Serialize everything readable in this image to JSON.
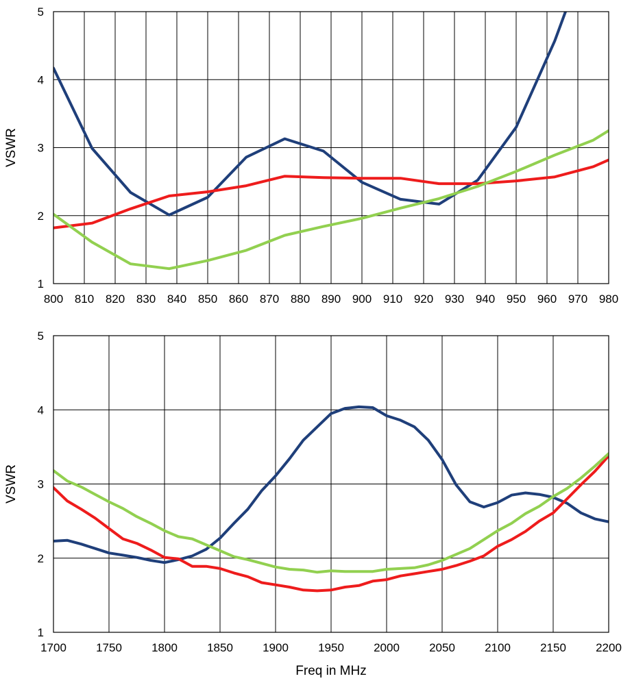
{
  "chart_data": [
    {
      "type": "line",
      "title": "",
      "xlabel": "",
      "ylabel": "VSWR",
      "xlim": [
        800,
        980
      ],
      "ylim": [
        1,
        5
      ],
      "xticks": [
        800,
        810,
        820,
        830,
        840,
        850,
        860,
        870,
        880,
        890,
        900,
        910,
        920,
        930,
        940,
        950,
        960,
        970,
        980
      ],
      "yticks": [
        1,
        2,
        3,
        4,
        5
      ],
      "grid": true,
      "series": [
        {
          "color": "#1f3f7a",
          "x": [
            800,
            812.5,
            825,
            837.5,
            850,
            862.5,
            875,
            887.5,
            900,
            912.5,
            925,
            937.5,
            950,
            962.5,
            966
          ],
          "y": [
            4.17,
            2.99,
            2.34,
            2.01,
            2.27,
            2.86,
            3.13,
            2.95,
            2.49,
            2.24,
            2.17,
            2.52,
            3.3,
            4.57,
            5.0
          ]
        },
        {
          "color": "#ee1c1c",
          "x": [
            800,
            812.5,
            825,
            837.5,
            850,
            862.5,
            875,
            887.5,
            900,
            912.5,
            925,
            937.5,
            950,
            962.5,
            975,
            980
          ],
          "y": [
            1.82,
            1.89,
            2.1,
            2.29,
            2.35,
            2.44,
            2.58,
            2.56,
            2.55,
            2.55,
            2.47,
            2.47,
            2.51,
            2.57,
            2.72,
            2.82
          ]
        },
        {
          "color": "#92d050",
          "x": [
            800,
            812.5,
            825,
            837.5,
            850,
            862.5,
            875,
            887.5,
            900,
            912.5,
            925,
            937.5,
            950,
            962.5,
            975,
            980
          ],
          "y": [
            2.02,
            1.61,
            1.29,
            1.22,
            1.34,
            1.49,
            1.71,
            1.84,
            1.96,
            2.11,
            2.25,
            2.43,
            2.65,
            2.89,
            3.11,
            3.25
          ]
        }
      ]
    },
    {
      "type": "line",
      "title": "",
      "xlabel": "Freq in MHz",
      "ylabel": "VSWR",
      "xlim": [
        1700,
        2200
      ],
      "ylim": [
        1,
        5
      ],
      "xticks": [
        1700,
        1750,
        1800,
        1850,
        1900,
        1950,
        2000,
        2050,
        2100,
        2150,
        2200
      ],
      "yticks": [
        1,
        2,
        3,
        4,
        5
      ],
      "grid": true,
      "series": [
        {
          "color": "#1f3f7a",
          "x": [
            1700,
            1712.5,
            1725,
            1737.5,
            1750,
            1762.5,
            1775,
            1787.5,
            1800,
            1812.5,
            1825,
            1837.5,
            1850,
            1862.5,
            1875,
            1887.5,
            1900,
            1912.5,
            1925,
            1937.5,
            1950,
            1962.5,
            1975,
            1987.5,
            2000,
            2012.5,
            2025,
            2037.5,
            2050,
            2062.5,
            2075,
            2087.5,
            2100,
            2112.5,
            2125,
            2137.5,
            2150,
            2162.5,
            2175,
            2187.5,
            2200
          ],
          "y": [
            2.23,
            2.24,
            2.19,
            2.13,
            2.07,
            2.04,
            2.01,
            1.97,
            1.94,
            1.98,
            2.03,
            2.12,
            2.27,
            2.47,
            2.66,
            2.91,
            3.11,
            3.34,
            3.59,
            3.77,
            3.95,
            4.02,
            4.04,
            4.03,
            3.92,
            3.86,
            3.77,
            3.59,
            3.33,
            2.99,
            2.76,
            2.69,
            2.75,
            2.85,
            2.88,
            2.86,
            2.82,
            2.74,
            2.61,
            2.53,
            2.49
          ]
        },
        {
          "color": "#ee1c1c",
          "x": [
            1700,
            1712.5,
            1725,
            1737.5,
            1750,
            1762.5,
            1775,
            1787.5,
            1800,
            1812.5,
            1825,
            1837.5,
            1850,
            1862.5,
            1875,
            1887.5,
            1900,
            1912.5,
            1925,
            1937.5,
            1950,
            1962.5,
            1975,
            1987.5,
            2000,
            2012.5,
            2025,
            2037.5,
            2050,
            2062.5,
            2075,
            2087.5,
            2100,
            2112.5,
            2125,
            2137.5,
            2150,
            2162.5,
            2175,
            2187.5,
            2200
          ],
          "y": [
            2.95,
            2.77,
            2.66,
            2.54,
            2.4,
            2.26,
            2.2,
            2.11,
            2.01,
            1.99,
            1.89,
            1.89,
            1.86,
            1.8,
            1.75,
            1.67,
            1.64,
            1.61,
            1.57,
            1.56,
            1.57,
            1.61,
            1.63,
            1.69,
            1.71,
            1.76,
            1.79,
            1.82,
            1.85,
            1.9,
            1.96,
            2.03,
            2.16,
            2.25,
            2.36,
            2.5,
            2.61,
            2.8,
            2.99,
            3.17,
            3.38
          ]
        },
        {
          "color": "#92d050",
          "x": [
            1700,
            1712.5,
            1725,
            1737.5,
            1750,
            1762.5,
            1775,
            1787.5,
            1800,
            1812.5,
            1825,
            1837.5,
            1850,
            1862.5,
            1875,
            1887.5,
            1900,
            1912.5,
            1925,
            1937.5,
            1950,
            1962.5,
            1975,
            1987.5,
            2000,
            2012.5,
            2025,
            2037.5,
            2050,
            2062.5,
            2075,
            2087.5,
            2100,
            2112.5,
            2125,
            2137.5,
            2150,
            2162.5,
            2175,
            2187.5,
            2200
          ],
          "y": [
            3.18,
            3.04,
            2.96,
            2.86,
            2.76,
            2.67,
            2.56,
            2.47,
            2.37,
            2.29,
            2.26,
            2.18,
            2.1,
            2.02,
            1.98,
            1.93,
            1.88,
            1.85,
            1.84,
            1.81,
            1.83,
            1.82,
            1.82,
            1.82,
            1.85,
            1.86,
            1.87,
            1.91,
            1.97,
            2.05,
            2.13,
            2.25,
            2.37,
            2.47,
            2.6,
            2.7,
            2.83,
            2.94,
            3.08,
            3.24,
            3.41
          ]
        }
      ]
    }
  ]
}
